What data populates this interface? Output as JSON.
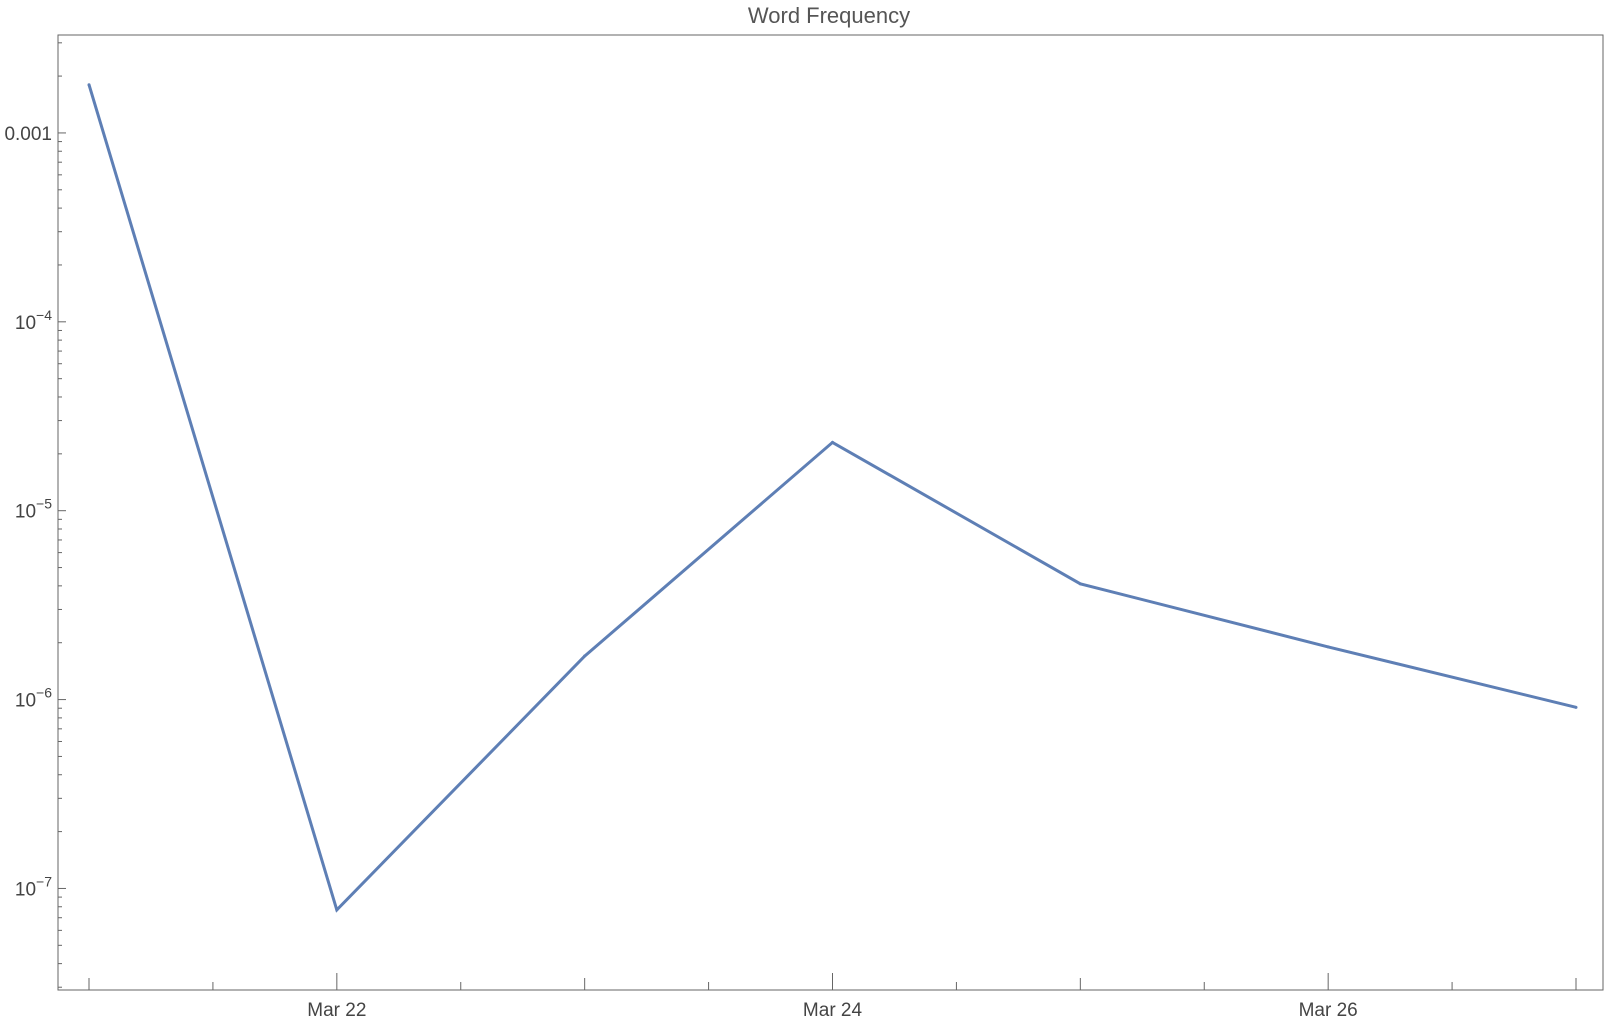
{
  "chart_data": {
    "type": "line",
    "title": "Word Frequency",
    "xlabel": "",
    "ylabel": "",
    "y_scale": "log",
    "grid": false,
    "legend": "none",
    "x_axis_type": "date",
    "xlim": [
      "Mar 21",
      "Mar 27"
    ],
    "ylim": [
      2.9e-08,
      0.0033
    ],
    "x_tick_labels": [
      {
        "date": "Mar 22",
        "label": "Mar 22"
      },
      {
        "date": "Mar 24",
        "label": "Mar 24"
      },
      {
        "date": "Mar 26",
        "label": "Mar 26"
      }
    ],
    "y_tick_labels": [
      {
        "value": 0.001,
        "mantissa": "0.001",
        "exponent": ""
      },
      {
        "value": 0.0001,
        "mantissa": "10",
        "exponent": "−4"
      },
      {
        "value": 1e-05,
        "mantissa": "10",
        "exponent": "−5"
      },
      {
        "value": 1e-06,
        "mantissa": "10",
        "exponent": "−6"
      },
      {
        "value": 1e-07,
        "mantissa": "10",
        "exponent": "−7"
      }
    ],
    "series": [
      {
        "color": "#5e7fb5",
        "points": [
          {
            "x": "Mar 21",
            "y": 0.0018
          },
          {
            "x": "Mar 22",
            "y": 7.7e-08
          },
          {
            "x": "Mar 23",
            "y": 1.7e-06
          },
          {
            "x": "Mar 24",
            "y": 2.3e-05
          },
          {
            "x": "Mar 25",
            "y": 4.1e-06
          },
          {
            "x": "Mar 26",
            "y": 1.9e-06
          },
          {
            "x": "Mar 27",
            "y": 9.1e-07
          }
        ]
      }
    ]
  }
}
